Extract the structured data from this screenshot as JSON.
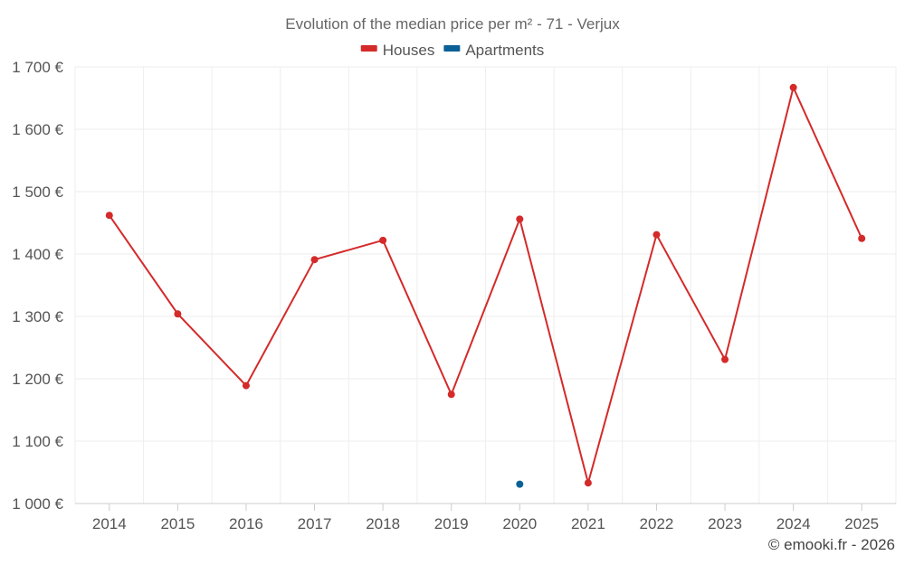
{
  "chart_data": {
    "type": "line",
    "title": "Evolution of the median price per m² - 71 - Verjux",
    "categories": [
      "2014",
      "2015",
      "2016",
      "2017",
      "2018",
      "2019",
      "2020",
      "2021",
      "2022",
      "2023",
      "2024",
      "2025"
    ],
    "series": [
      {
        "name": "Houses",
        "color": "#d42a2a",
        "values": [
          1462,
          1304,
          1189,
          1391,
          1422,
          1175,
          1456,
          1033,
          1431,
          1231,
          1667,
          1425
        ]
      },
      {
        "name": "Apartments",
        "color": "#0b6196",
        "values": [
          null,
          null,
          null,
          null,
          null,
          null,
          1031,
          null,
          null,
          null,
          null,
          null
        ]
      }
    ],
    "ylim": [
      1000,
      1700
    ],
    "yticks": [
      1000,
      1100,
      1200,
      1300,
      1400,
      1500,
      1600,
      1700
    ],
    "ytick_labels": [
      "1 000 €",
      "1 100 €",
      "1 200 €",
      "1 300 €",
      "1 400 €",
      "1 500 €",
      "1 600 €",
      "1 700 €"
    ],
    "xlabel": "",
    "ylabel": "",
    "grid": true,
    "legend": "top-center"
  },
  "credit": "© emooki.fr - 2026"
}
